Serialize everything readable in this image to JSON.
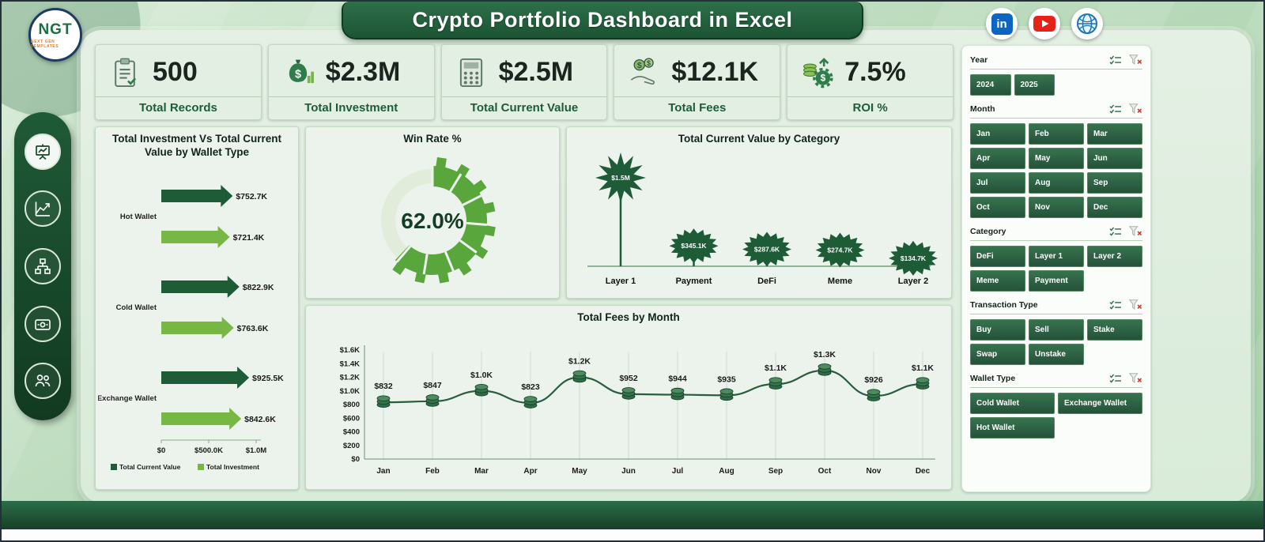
{
  "header": {
    "title": "Crypto Portfolio Dashboard in Excel",
    "logo": {
      "text": "NGT",
      "subtext": "NEXT GEN TEMPLATES"
    }
  },
  "social": {
    "icons": [
      "linkedin-icon",
      "youtube-icon",
      "website-icon"
    ]
  },
  "sidebar": {
    "icons": [
      "presentation-icon",
      "trend-chart-icon",
      "hierarchy-icon",
      "wallet-icon",
      "people-icon"
    ]
  },
  "kpis": [
    {
      "value": "500",
      "label": "Total Records",
      "icon": "clipboard-icon"
    },
    {
      "value": "$2.3M",
      "label": "Total Investment",
      "icon": "money-bag-icon"
    },
    {
      "value": "$2.5M",
      "label": "Total Current Value",
      "icon": "calculator-icon"
    },
    {
      "value": "$12.1K",
      "label": "Total Fees",
      "icon": "hand-coins-icon"
    },
    {
      "value": "7.5%",
      "label": "ROI %",
      "icon": "coins-gear-icon"
    }
  ],
  "chart_data": [
    {
      "type": "bar",
      "orientation": "horizontal",
      "title": "Total Investment Vs Total Current Value by Wallet Type",
      "categories": [
        "Hot Wallet",
        "Cold Wallet",
        "Exchange Wallet"
      ],
      "series": [
        {
          "name": "Total Current Value",
          "color": "#1e5c38",
          "values": [
            752700,
            822900,
            925500
          ],
          "labels": [
            "$752.7K",
            "$822.9K",
            "$925.5K"
          ]
        },
        {
          "name": "Total Investment",
          "color": "#76b843",
          "values": [
            721400,
            763600,
            842600
          ],
          "labels": [
            "$721.4K",
            "$763.6K",
            "$842.6K"
          ]
        }
      ],
      "xticks": [
        "$0",
        "$500.0K",
        "$1.0M"
      ],
      "xlim": [
        0,
        1000000
      ],
      "legend_position": "bottom"
    },
    {
      "type": "pie",
      "title": "Win Rate %",
      "value": 62.0,
      "label": "62.0%",
      "remainder": 38.0
    },
    {
      "type": "lollipop",
      "title": "Total Current Value by Category",
      "categories": [
        "Layer 1",
        "Payment",
        "DeFi",
        "Meme",
        "Layer 2"
      ],
      "values": [
        1500000,
        345100,
        287600,
        274700,
        134700
      ],
      "labels": [
        "$1.5M",
        "$345.1K",
        "$287.6K",
        "$274.7K",
        "$134.7K"
      ]
    },
    {
      "type": "line",
      "title": "Total Fees by Month",
      "categories": [
        "Jan",
        "Feb",
        "Mar",
        "Apr",
        "May",
        "Jun",
        "Jul",
        "Aug",
        "Sep",
        "Oct",
        "Nov",
        "Dec"
      ],
      "values": [
        832,
        847,
        1000,
        823,
        1200,
        952,
        944,
        935,
        1100,
        1300,
        926,
        1100
      ],
      "labels": [
        "$832",
        "$847",
        "$1.0K",
        "$823",
        "$1.2K",
        "$952",
        "$944",
        "$935",
        "$1.1K",
        "$1.3K",
        "$926",
        "$1.1K"
      ],
      "yticks": [
        "$0",
        "$200",
        "$400",
        "$600",
        "$800",
        "$1.0K",
        "$1.2K",
        "$1.4K",
        "$1.6K"
      ],
      "ylim": [
        0,
        1600
      ]
    }
  ],
  "slicers": [
    {
      "title": "Year",
      "cols": 4,
      "items": [
        "2024",
        "2025"
      ]
    },
    {
      "title": "Month",
      "cols": 3,
      "items": [
        "Jan",
        "Feb",
        "Mar",
        "Apr",
        "May",
        "Jun",
        "Jul",
        "Aug",
        "Sep",
        "Oct",
        "Nov",
        "Dec"
      ]
    },
    {
      "title": "Category",
      "cols": 3,
      "items": [
        "DeFi",
        "Layer 1",
        "Layer 2",
        "Meme",
        "Payment"
      ]
    },
    {
      "title": "Transaction Type",
      "cols": 3,
      "items": [
        "Buy",
        "Sell",
        "Stake",
        "Swap",
        "Unstake"
      ]
    },
    {
      "title": "Wallet Type",
      "cols": 2,
      "items": [
        "Cold Wallet",
        "Exchange Wallet",
        "Hot Wallet"
      ]
    }
  ],
  "colors": {
    "dark_green": "#1e5c38",
    "mid_green": "#2e7d4a",
    "light_green": "#76b843",
    "donut_green": "#58a63c",
    "donut_rest": "#e1ecdb",
    "card_bg": "#ecf3ec"
  }
}
